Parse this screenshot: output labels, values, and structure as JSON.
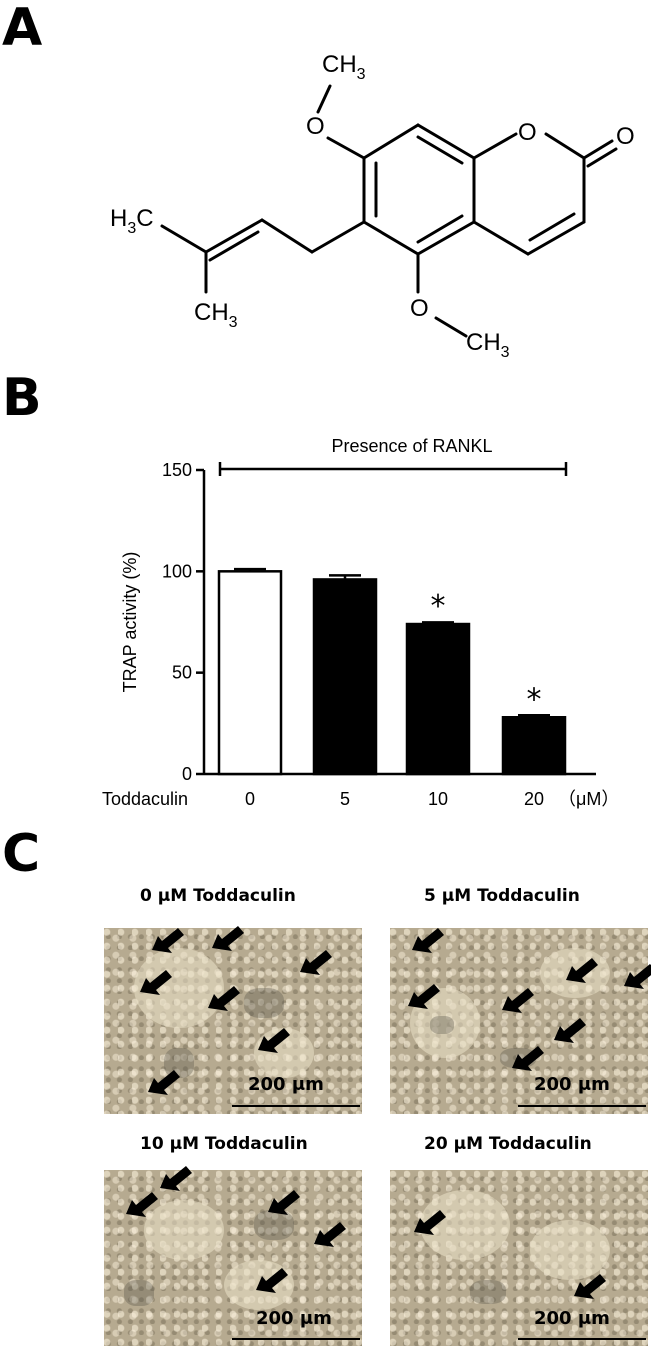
{
  "panels": {
    "a": "A",
    "b": "B",
    "c": "C"
  },
  "structure": {
    "ch3_top": "CH",
    "ch3_left": "H",
    "ch3_left_c": "C",
    "ch3_bottom": "CH",
    "ch3_right": "CH",
    "sub3": "3",
    "oxygen": "O"
  },
  "chart_data": {
    "type": "bar",
    "bracket_label": "Presence of RANKL",
    "ylabel": "TRAP activity (%)",
    "ylim": [
      0,
      150
    ],
    "yticks": [
      "0",
      "50",
      "100",
      "150"
    ],
    "x_axis_title": "Toddaculin",
    "unit_label": "（μM）",
    "categories": [
      "0",
      "5",
      "10",
      "20"
    ],
    "values": [
      100,
      96,
      74,
      28
    ],
    "errors": [
      0.6,
      1.5,
      0.3,
      0.5
    ],
    "fills": [
      "#ffffff",
      "#000000",
      "#000000",
      "#000000"
    ],
    "significance": [
      "",
      "",
      "*",
      "*"
    ]
  },
  "micrographs": [
    {
      "title": "0 μM Toddaculin",
      "scale": "200 μm"
    },
    {
      "title": "5 μM Toddaculin",
      "scale": "200 μm"
    },
    {
      "title": "10 μM Toddaculin",
      "scale": "200 μm"
    },
    {
      "title": "20 μM Toddaculin",
      "scale": "200 μm"
    }
  ]
}
